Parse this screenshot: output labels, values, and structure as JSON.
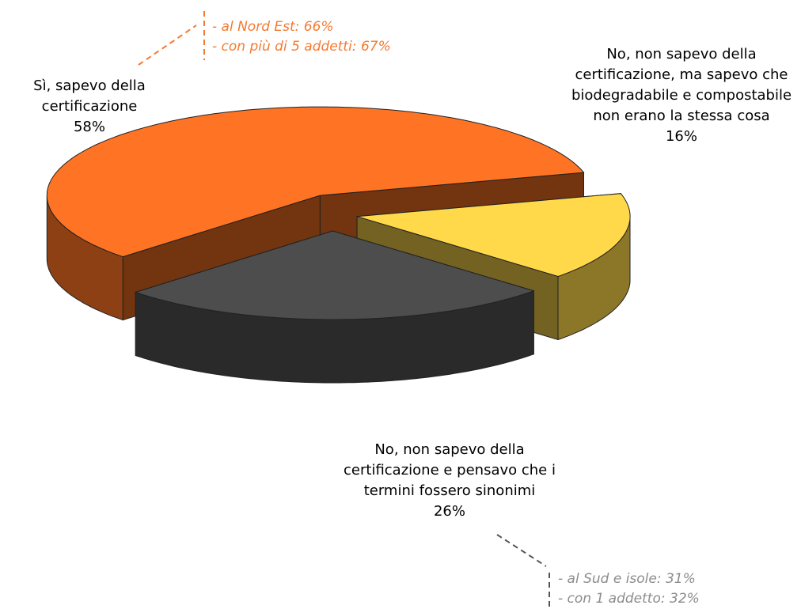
{
  "chart_data": {
    "type": "pie",
    "categories": [
      "Sì, sapevo della certificazione",
      "No, non sapevo della certificazione, ma sapevo che biodegradabile e compostabile non erano la stessa cosa",
      "No, non sapevo della certificazione e pensavo che i termini fossero sinonimi"
    ],
    "values": [
      58,
      16,
      26
    ],
    "value_labels": [
      "58%",
      "16%",
      "26%"
    ],
    "colors": [
      "#ff7424",
      "#ffd94a",
      "#4d4d4d"
    ],
    "annotations": [
      {
        "lines": [
          "- al Nord Est: 66%",
          "- con più di 5 addetti: 67%"
        ],
        "color": "#f47a30"
      },
      {
        "lines": [
          "- al Sud e isole: 31%",
          "- con 1 addetto: 32%"
        ],
        "color": "#8c8c8c"
      }
    ]
  }
}
